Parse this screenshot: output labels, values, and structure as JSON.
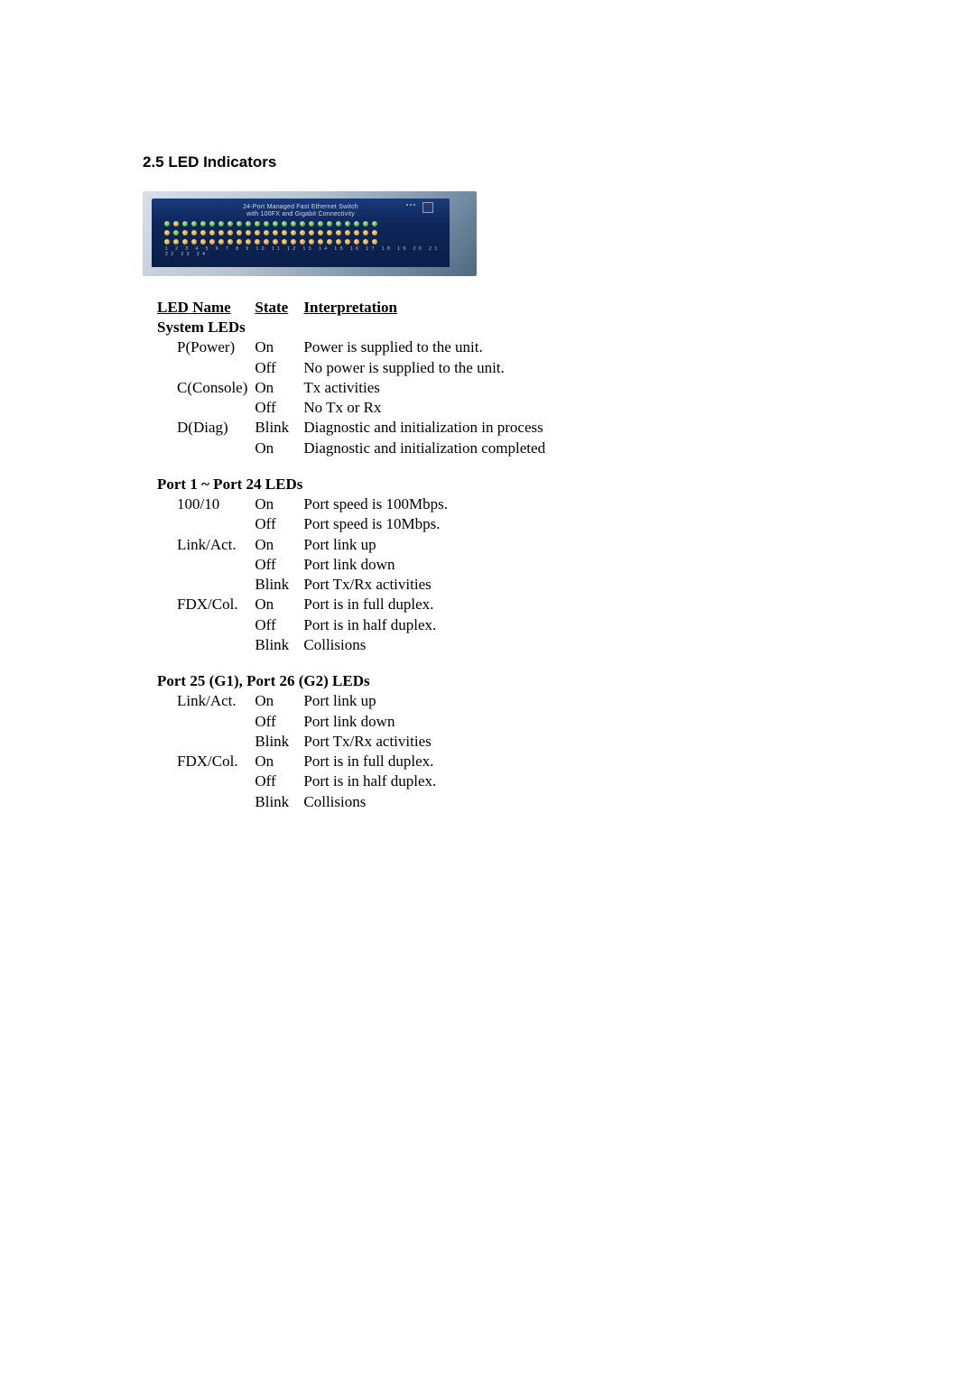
{
  "title": "2.5 LED Indicators",
  "device": {
    "title_line1": "24-Port Managed Fast Ethernet Switch",
    "title_line2": "with 100FX and Gigabit Connectivity",
    "port_count": 24,
    "led_row_colors": [
      [
        "green",
        "yellow",
        "green",
        "green",
        "green",
        "green",
        "green",
        "green",
        "green",
        "green",
        "green",
        "green",
        "green",
        "green",
        "green",
        "green",
        "green",
        "green",
        "green",
        "green",
        "green",
        "green",
        "green",
        "green"
      ],
      [
        "yellow",
        "green",
        "yellow",
        "yellow",
        "yellow",
        "yellow",
        "yellow",
        "yellow",
        "yellow",
        "yellow",
        "yellow",
        "yellow",
        "yellow",
        "yellow",
        "yellow",
        "yellow",
        "yellow",
        "yellow",
        "yellow",
        "yellow",
        "yellow",
        "yellow",
        "yellow",
        "yellow"
      ],
      [
        "yellow",
        "yellow",
        "yellow",
        "yellow",
        "yellow",
        "yellow",
        "yellow",
        "yellow",
        "yellow",
        "yellow",
        "yellow",
        "yellow",
        "yellow",
        "yellow",
        "yellow",
        "yellow",
        "yellow",
        "yellow",
        "yellow",
        "yellow",
        "yellow",
        "yellow",
        "yellow",
        "yellow"
      ]
    ],
    "panel_bg_gradient": [
      "#d8e0e8",
      "#506880"
    ],
    "face_gradient": [
      "#1a3a7a",
      "#0a1f4a"
    ],
    "led_green": "#5aa840",
    "led_yellow": "#d0a030"
  },
  "headers": {
    "name": "LED Name",
    "state": "State",
    "interpretation": "Interpretation"
  },
  "groups": [
    {
      "title": "System LEDs",
      "rows": [
        {
          "name": "P(Power)",
          "state": "On",
          "interpretation": "Power is supplied to the unit."
        },
        {
          "name": "",
          "state": "Off",
          "interpretation": "No power is supplied to the unit."
        },
        {
          "name": "C(Console)",
          "state": "On",
          "interpretation": "Tx activities"
        },
        {
          "name": "",
          "state": "Off",
          "interpretation": "No Tx or Rx"
        },
        {
          "name": "D(Diag)",
          "state": "Blink",
          "interpretation": "Diagnostic and initialization in process"
        },
        {
          "name": "",
          "state": "On",
          "interpretation": "Diagnostic and initialization completed"
        }
      ]
    },
    {
      "title": "Port 1 ~ Port 24 LEDs",
      "rows": [
        {
          "name": "100/10",
          "state": "On",
          "interpretation": "Port speed is 100Mbps."
        },
        {
          "name": "",
          "state": "Off",
          "interpretation": "Port speed is 10Mbps."
        },
        {
          "name": "Link/Act.",
          "state": "On",
          "interpretation": "Port  link up"
        },
        {
          "name": "",
          "state": "Off",
          "interpretation": "Port link down"
        },
        {
          "name": "",
          "state": "Blink",
          "interpretation": "Port Tx/Rx activities"
        },
        {
          "name": "FDX/Col.",
          "state": "On",
          "interpretation": "Port is in full duplex."
        },
        {
          "name": "",
          "state": "Off",
          "interpretation": "Port is in half duplex."
        },
        {
          "name": "",
          "state": "Blink",
          "interpretation": "Collisions"
        }
      ]
    },
    {
      "title": "Port 25 (G1), Port 26 (G2) LEDs",
      "rows": [
        {
          "name": "Link/Act.",
          "state": "On",
          "interpretation": "Port link up"
        },
        {
          "name": "",
          "state": "Off",
          "interpretation": "Port link down"
        },
        {
          "name": "",
          "state": "Blink",
          "interpretation": "Port Tx/Rx activities"
        },
        {
          "name": "FDX/Col.",
          "state": "On",
          "interpretation": "Port is in full duplex."
        },
        {
          "name": "",
          "state": "Off",
          "interpretation": "Port is in half duplex."
        },
        {
          "name": "",
          "state": "Blink",
          "interpretation": "Collisions"
        }
      ]
    }
  ],
  "colors": {
    "text": "#000000",
    "background": "#ffffff"
  },
  "typography": {
    "body_font": "Times New Roman",
    "heading_font": "Arial",
    "body_size_pt": 12,
    "heading_size_pt": 12
  }
}
